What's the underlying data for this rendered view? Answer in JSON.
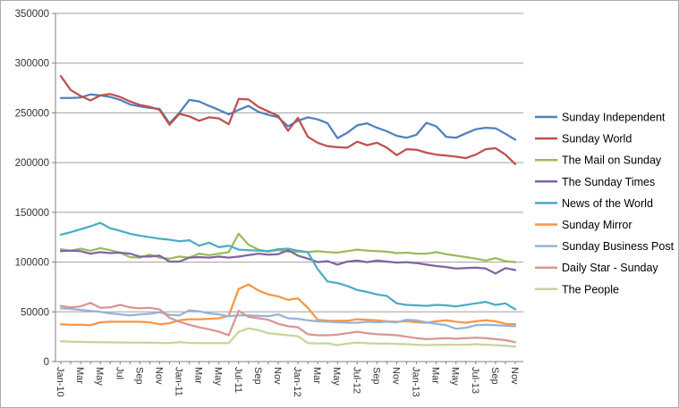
{
  "chart_data": {
    "type": "line",
    "title": "",
    "grid": true,
    "legend_position": "right",
    "colors": {
      "axis": "#808080",
      "gridline": "#a0a0a0",
      "tick_text": "#333333",
      "border": "#ababab"
    },
    "y_axis": {
      "min": 0,
      "max": 350000,
      "step": 50000,
      "tick_labels": [
        "0",
        "50000",
        "100000",
        "150000",
        "200000",
        "250000",
        "300000",
        "350000"
      ]
    },
    "x_axis": {
      "months_count": 47,
      "label_every": 2,
      "tick_labels": [
        "Jan-10",
        "Mar",
        "May",
        "Jul",
        "Sep",
        "Nov",
        "Jan-11",
        "Mar",
        "May",
        "Jul-11",
        "Sep",
        "Nov",
        "Jan-12",
        "Mar",
        "May",
        "Jul-12",
        "Sep",
        "Nov",
        "Jan-13",
        "Mar",
        "May",
        "Jul-13",
        "Sep",
        "Nov"
      ]
    },
    "series": [
      {
        "name": "Sunday Independent",
        "color": "#4F81BD",
        "values": [
          265000,
          265000,
          265500,
          268500,
          267500,
          266000,
          263000,
          258500,
          256500,
          255000,
          254000,
          239500,
          250000,
          263000,
          261500,
          257000,
          253000,
          248500,
          253000,
          257000,
          251000,
          248000,
          245500,
          236500,
          242000,
          245500,
          243500,
          239500,
          224500,
          230000,
          237500,
          239500,
          235000,
          231500,
          227000,
          225000,
          228000,
          240000,
          236500,
          226000,
          225000,
          229500,
          233500,
          235000,
          234500,
          229000,
          223000
        ]
      },
      {
        "name": "Sunday World",
        "color": "#C0504D",
        "values": [
          287000,
          273000,
          267000,
          262500,
          267500,
          269000,
          266000,
          261500,
          258000,
          256000,
          253000,
          238000,
          249000,
          246500,
          242000,
          245500,
          244500,
          238500,
          264000,
          263500,
          256000,
          251500,
          247000,
          232000,
          245000,
          226000,
          220000,
          216500,
          215500,
          215000,
          221000,
          217500,
          220000,
          215000,
          207500,
          213500,
          213000,
          210000,
          208000,
          207000,
          206000,
          204500,
          208000,
          213500,
          214500,
          208000,
          198500
        ]
      },
      {
        "name": "The Mail on Sunday",
        "color": "#9BBB59",
        "values": [
          113000,
          111500,
          113500,
          111500,
          114000,
          112000,
          109500,
          105000,
          104500,
          107500,
          104500,
          103500,
          105500,
          104500,
          108500,
          107000,
          108500,
          110000,
          128500,
          117500,
          112500,
          110500,
          112000,
          110500,
          110500,
          110000,
          111000,
          110000,
          109500,
          111000,
          112500,
          111500,
          111000,
          110500,
          109000,
          109500,
          108500,
          108500,
          110000,
          108000,
          106500,
          105000,
          103500,
          101500,
          104000,
          101000,
          100000
        ]
      },
      {
        "name": "The Sunday Times",
        "color": "#8064A2",
        "values": [
          111000,
          111500,
          111000,
          108500,
          110000,
          109000,
          109500,
          108500,
          105500,
          105500,
          106500,
          100500,
          100500,
          104500,
          105000,
          104500,
          105500,
          104500,
          105500,
          107000,
          108500,
          107500,
          108000,
          112000,
          106500,
          103500,
          100000,
          101000,
          97500,
          100500,
          101500,
          100000,
          101500,
          100500,
          99500,
          100000,
          99000,
          97500,
          96000,
          95000,
          93500,
          94000,
          94500,
          93500,
          88500,
          94000,
          92000
        ]
      },
      {
        "name": "News of the World",
        "color": "#4BACC6",
        "values": [
          127500,
          130000,
          133000,
          136000,
          139500,
          134000,
          131500,
          128500,
          126500,
          125000,
          123500,
          122500,
          121000,
          122000,
          116500,
          119500,
          115000,
          116500,
          112500,
          112000,
          111500,
          111000,
          113000,
          113500,
          111500,
          110000,
          93000,
          80500,
          79000,
          76000,
          72000,
          70000,
          67500,
          66000,
          58500,
          57000,
          56500,
          56000,
          57000,
          56500,
          55500,
          57000,
          58500,
          60000,
          57000,
          58500,
          52500
        ]
      },
      {
        "name": "Sunday Mirror",
        "color": "#F79646",
        "values": [
          37500,
          37000,
          37000,
          36500,
          39500,
          40000,
          40000,
          40000,
          40000,
          39500,
          37500,
          38500,
          41500,
          42500,
          42500,
          43000,
          43500,
          46000,
          73000,
          77500,
          71500,
          67500,
          65500,
          62000,
          63500,
          54000,
          42000,
          41000,
          41000,
          41000,
          42500,
          42000,
          41500,
          40500,
          40000,
          40500,
          39500,
          39000,
          40500,
          41500,
          40000,
          39000,
          40500,
          41500,
          40500,
          38000,
          37500
        ]
      },
      {
        "name": "Sunday Business Post",
        "color": "#95B3D7",
        "values": [
          53500,
          53000,
          52000,
          51000,
          50000,
          48500,
          47500,
          46500,
          47500,
          48000,
          49500,
          47000,
          46500,
          51500,
          50500,
          48500,
          47500,
          45500,
          46500,
          46500,
          46000,
          45500,
          47500,
          43500,
          43000,
          41500,
          40500,
          40000,
          39500,
          39000,
          39000,
          40000,
          39500,
          40000,
          39500,
          42000,
          41500,
          39500,
          38000,
          36500,
          33000,
          34000,
          36500,
          37000,
          36500,
          36000,
          35500
        ]
      },
      {
        "name": "Daily Star - Sunday",
        "color": "#D99694",
        "values": [
          56000,
          54500,
          55500,
          59000,
          54000,
          54500,
          57000,
          54500,
          53500,
          54000,
          52500,
          44000,
          40000,
          37000,
          34500,
          32500,
          30000,
          26500,
          51000,
          45000,
          43500,
          42000,
          38000,
          35500,
          34500,
          27500,
          26500,
          26500,
          27000,
          28500,
          30000,
          28500,
          27500,
          27000,
          26500,
          25000,
          23500,
          22500,
          23000,
          23500,
          23000,
          23500,
          24000,
          23500,
          22500,
          21500,
          19500
        ]
      },
      {
        "name": "The People",
        "color": "#C3D69B",
        "values": [
          20500,
          20000,
          19800,
          19500,
          19500,
          19300,
          19200,
          19000,
          19000,
          19000,
          18800,
          18600,
          19500,
          18800,
          18700,
          18600,
          18600,
          18500,
          30000,
          33500,
          31500,
          28500,
          27500,
          26500,
          25500,
          18600,
          18200,
          18400,
          16500,
          18000,
          19000,
          18500,
          18000,
          18200,
          17800,
          17500,
          17000,
          16500,
          16800,
          17000,
          16800,
          17000,
          17500,
          17000,
          16500,
          16000,
          15000
        ]
      }
    ]
  }
}
